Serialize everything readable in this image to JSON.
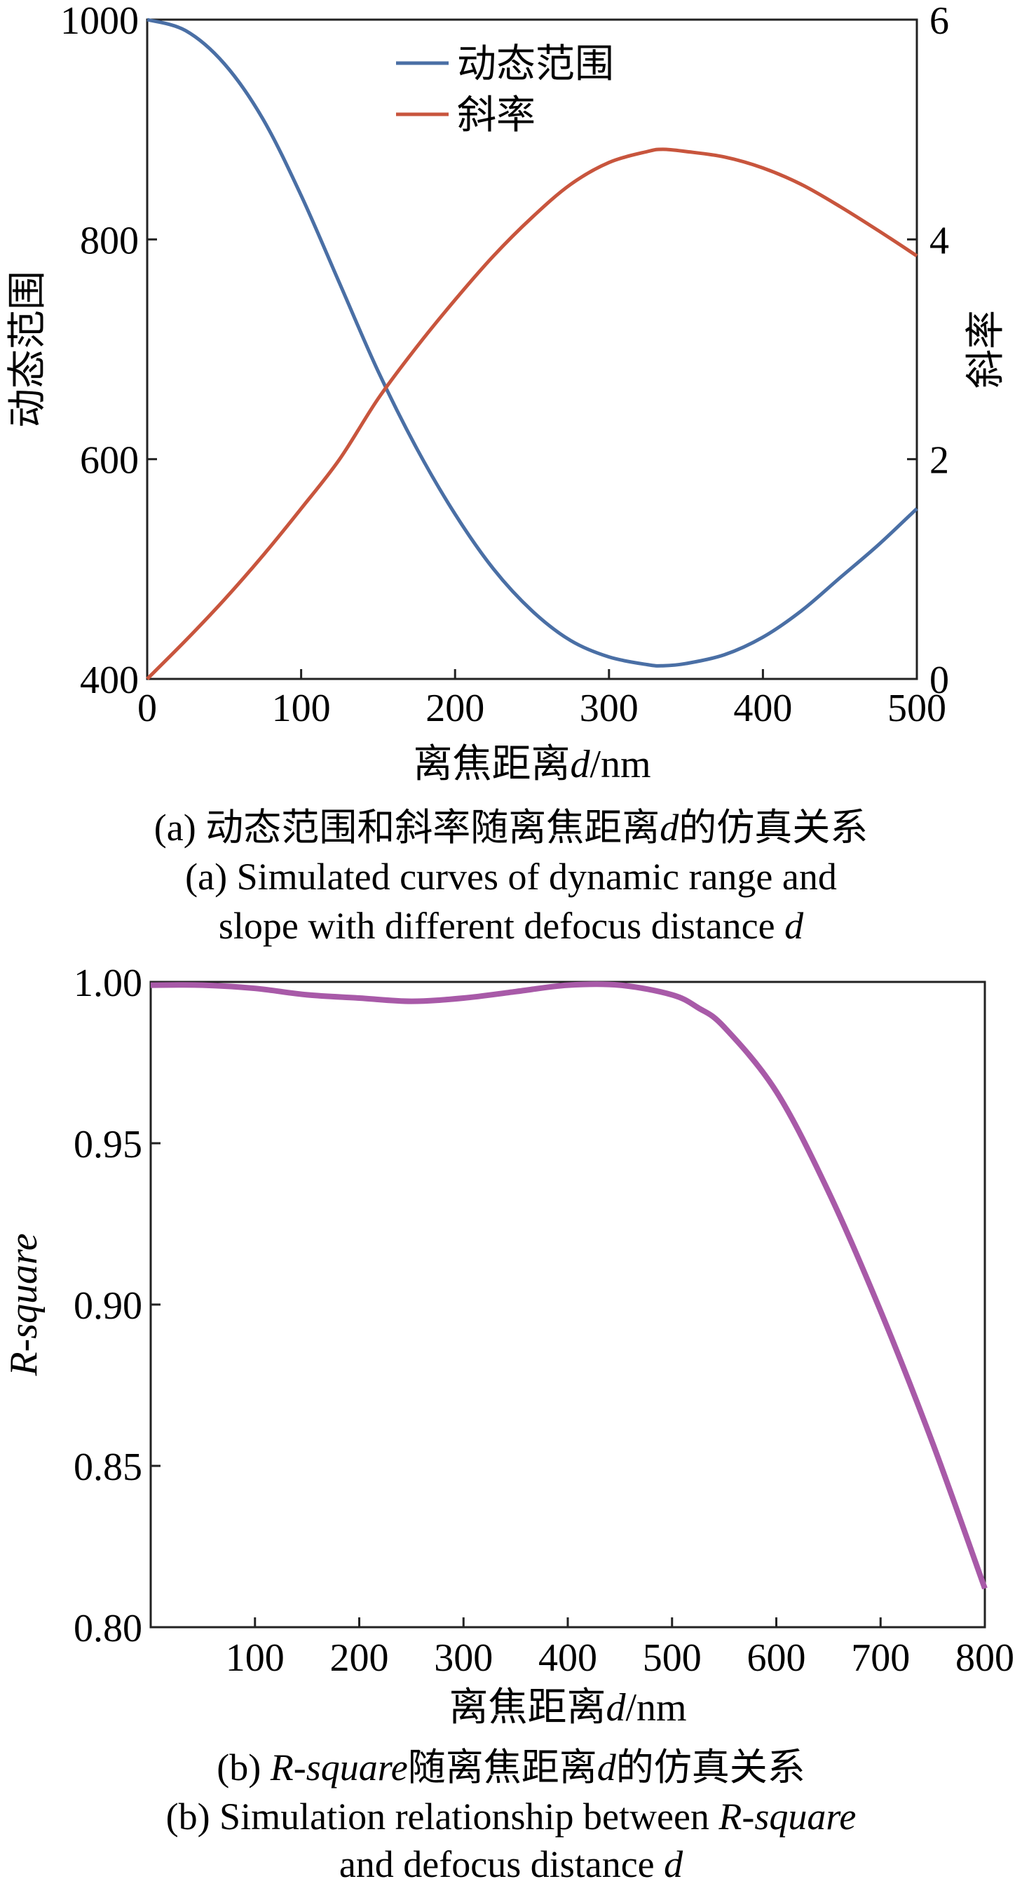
{
  "chart_data": [
    {
      "type": "line",
      "title": "",
      "xlabel": "离焦距离d/nm",
      "ylabel_left": "动态范围",
      "ylabel_right": "斜率",
      "xlim": [
        0,
        500
      ],
      "ylim_left": [
        400,
        1000
      ],
      "ylim_right": [
        0,
        6
      ],
      "x_ticks": [
        "0",
        "100",
        "200",
        "300",
        "400",
        "500"
      ],
      "y_left_ticks": [
        "400",
        "600",
        "800",
        "1000"
      ],
      "y_right_ticks": [
        "0",
        "2",
        "4",
        "6"
      ],
      "legend": "top-center",
      "grid": false,
      "series": [
        {
          "name": "动态范围",
          "axis": "left",
          "color": "#4a6fa5",
          "x": [
            0,
            25,
            50,
            75,
            100,
            125,
            150,
            175,
            200,
            225,
            250,
            275,
            300,
            325,
            335,
            350,
            375,
            400,
            425,
            450,
            475,
            500
          ],
          "y": [
            1000,
            990,
            960,
            910,
            840,
            760,
            680,
            610,
            550,
            500,
            462,
            435,
            420,
            413,
            412,
            414,
            422,
            438,
            462,
            492,
            522,
            555
          ]
        },
        {
          "name": "斜率",
          "axis": "right",
          "color": "#c8553d",
          "x": [
            0,
            25,
            50,
            75,
            100,
            125,
            150,
            175,
            200,
            225,
            250,
            275,
            300,
            325,
            335,
            350,
            375,
            400,
            425,
            450,
            475,
            500
          ],
          "y": [
            0,
            0.35,
            0.72,
            1.12,
            1.55,
            2.0,
            2.55,
            3.02,
            3.45,
            3.85,
            4.2,
            4.5,
            4.7,
            4.8,
            4.82,
            4.8,
            4.75,
            4.65,
            4.5,
            4.3,
            4.08,
            3.85
          ]
        }
      ],
      "caption_zh_prefix": "(a) 动态范围和斜率随离焦距离",
      "caption_zh_var": "d",
      "caption_zh_suffix": "的仿真关系",
      "caption_en_line1": "(a) Simulated curves of dynamic range and",
      "caption_en_line2_prefix": "slope with different defocus distance ",
      "caption_en_line2_var": "d"
    },
    {
      "type": "line",
      "title": "",
      "xlabel": "离焦距离d/nm",
      "ylabel": "R-square",
      "xlim": [
        0,
        800
      ],
      "ylim": [
        0.8,
        1.0
      ],
      "x_ticks": [
        "100",
        "200",
        "300",
        "400",
        "500",
        "600",
        "700",
        "800"
      ],
      "y_ticks": [
        "0.80",
        "0.85",
        "0.90",
        "0.95",
        "1.00"
      ],
      "grid": false,
      "series": [
        {
          "color": "#a85aa8",
          "x": [
            0,
            50,
            100,
            150,
            200,
            250,
            300,
            350,
            400,
            450,
            500,
            525,
            550,
            600,
            650,
            700,
            750,
            800
          ],
          "y": [
            0.999,
            0.999,
            0.998,
            0.996,
            0.995,
            0.994,
            0.995,
            0.997,
            0.999,
            0.999,
            0.996,
            0.992,
            0.986,
            0.966,
            0.935,
            0.898,
            0.857,
            0.812
          ]
        }
      ],
      "caption_zh_var_prefix": "(b) ",
      "caption_zh_var": "R-square",
      "caption_zh_suffix_a": "随离焦距离",
      "caption_zh_var2": "d",
      "caption_zh_suffix_b": "的仿真关系",
      "caption_en_line1_prefix": "(b) Simulation relationship between ",
      "caption_en_line1_var": "R-square",
      "caption_en_line2_prefix": "and defocus distance ",
      "caption_en_line2_var": "d"
    }
  ]
}
